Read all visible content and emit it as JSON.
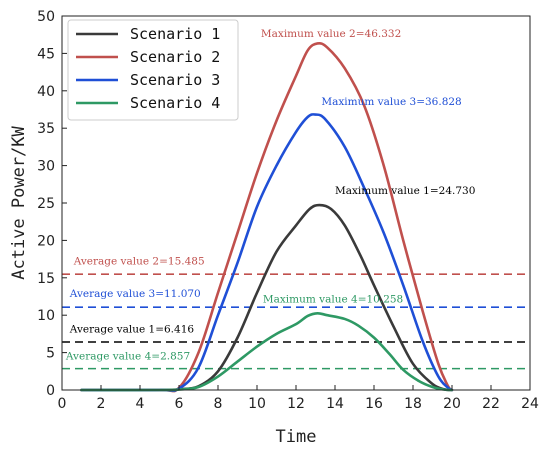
{
  "chart_data": {
    "type": "line",
    "xlabel": "Time",
    "ylabel": "Active Power/KW",
    "xlim": [
      0,
      24
    ],
    "ylim": [
      0,
      50
    ],
    "xticks": [
      "0",
      "2",
      "4",
      "6",
      "8",
      "10",
      "12",
      "14",
      "16",
      "18",
      "20",
      "22",
      "24"
    ],
    "yticks": [
      "0",
      "5",
      "10",
      "15",
      "20",
      "25",
      "30",
      "35",
      "40",
      "45",
      "50"
    ],
    "grid": false,
    "legend_position": "top-left",
    "series": [
      {
        "name": "Scenario 1",
        "color": "#3a3a3a",
        "points": [
          [
            1,
            0
          ],
          [
            5,
            0
          ],
          [
            6,
            0.1
          ],
          [
            7,
            0.5
          ],
          [
            8,
            2.5
          ],
          [
            9,
            7
          ],
          [
            10,
            13
          ],
          [
            11,
            18.5
          ],
          [
            12,
            22
          ],
          [
            12.7,
            24.2
          ],
          [
            13.2,
            24.73
          ],
          [
            13.8,
            24.2
          ],
          [
            14.5,
            22
          ],
          [
            15.3,
            18
          ],
          [
            16,
            14
          ],
          [
            17,
            8.5
          ],
          [
            18,
            3.5
          ],
          [
            19,
            0.8
          ],
          [
            19.6,
            0.1
          ],
          [
            20,
            0
          ]
        ]
      },
      {
        "name": "Scenario 2",
        "color": "#c0504d",
        "points": [
          [
            1,
            0
          ],
          [
            5,
            0
          ],
          [
            6,
            0.3
          ],
          [
            7,
            5
          ],
          [
            8,
            13
          ],
          [
            9,
            21
          ],
          [
            10,
            29
          ],
          [
            11,
            36
          ],
          [
            12,
            42
          ],
          [
            12.6,
            45.4
          ],
          [
            13.1,
            46.332
          ],
          [
            13.6,
            45.8
          ],
          [
            14.5,
            43
          ],
          [
            15.5,
            38
          ],
          [
            16.5,
            30
          ],
          [
            17.5,
            20
          ],
          [
            18.5,
            10.5
          ],
          [
            19.3,
            3.5
          ],
          [
            19.8,
            0.5
          ],
          [
            20,
            0
          ]
        ]
      },
      {
        "name": "Scenario 3",
        "color": "#1f4fd6",
        "points": [
          [
            1,
            0
          ],
          [
            5,
            0
          ],
          [
            6,
            0.2
          ],
          [
            7,
            3
          ],
          [
            8,
            10
          ],
          [
            9,
            17
          ],
          [
            10,
            24.5
          ],
          [
            11,
            30
          ],
          [
            12,
            34.5
          ],
          [
            12.6,
            36.5
          ],
          [
            13,
            36.828
          ],
          [
            13.5,
            36.2
          ],
          [
            14.5,
            32.5
          ],
          [
            15.5,
            27
          ],
          [
            16.5,
            21
          ],
          [
            17.5,
            14
          ],
          [
            18.5,
            6.5
          ],
          [
            19.3,
            1.8
          ],
          [
            19.8,
            0.3
          ],
          [
            20,
            0
          ]
        ]
      },
      {
        "name": "Scenario 4",
        "color": "#2e9964",
        "points": [
          [
            1,
            0
          ],
          [
            5,
            0
          ],
          [
            6,
            0.05
          ],
          [
            7,
            0.4
          ],
          [
            8,
            1.8
          ],
          [
            9,
            3.8
          ],
          [
            10,
            5.8
          ],
          [
            11,
            7.5
          ],
          [
            12,
            8.8
          ],
          [
            12.6,
            9.9
          ],
          [
            13.1,
            10.258
          ],
          [
            13.6,
            10
          ],
          [
            14.5,
            9.5
          ],
          [
            15.2,
            8.6
          ],
          [
            16,
            7
          ],
          [
            16.8,
            4.8
          ],
          [
            17.5,
            2.7
          ],
          [
            18.3,
            1.2
          ],
          [
            19,
            0.4
          ],
          [
            19.6,
            0.05
          ],
          [
            20,
            0
          ]
        ]
      }
    ],
    "averages": [
      {
        "series": "Scenario 1",
        "value": 6.416,
        "color": "#000000",
        "label": "Average value 1=6.416"
      },
      {
        "series": "Scenario 2",
        "value": 15.485,
        "color": "#c0504d",
        "label": "Average value 2=15.485"
      },
      {
        "series": "Scenario 3",
        "value": 11.07,
        "color": "#1f4fd6",
        "label": "Average value 3=11.070"
      },
      {
        "series": "Scenario 4",
        "value": 2.857,
        "color": "#2e9964",
        "label": "Average value 4=2.857"
      }
    ],
    "maximum_labels": [
      {
        "series": "Scenario 1",
        "value": 24.73,
        "color": "#000000",
        "label": "Maximum value 1=24.730",
        "x": 14,
        "y": 26.2
      },
      {
        "series": "Scenario 2",
        "value": 46.332,
        "color": "#c0504d",
        "label": "Maximum value 2=46.332",
        "x": 10.2,
        "y": 47.2
      },
      {
        "series": "Scenario 3",
        "value": 36.828,
        "color": "#1f4fd6",
        "label": "Maximum value 3=36.828",
        "x": 13.3,
        "y": 38.1
      },
      {
        "series": "Scenario 4",
        "value": 10.258,
        "color": "#2e9964",
        "label": "Maximum value 4=10.258",
        "x": 10.3,
        "y": 11.7
      }
    ],
    "average_label_positions": [
      {
        "series": "Scenario 1",
        "x": 0.4,
        "y": 7.7
      },
      {
        "series": "Scenario 2",
        "x": 0.6,
        "y": 16.8
      },
      {
        "series": "Scenario 3",
        "x": 0.4,
        "y": 12.4
      },
      {
        "series": "Scenario 4",
        "x": 0.2,
        "y": 4.1
      }
    ]
  }
}
